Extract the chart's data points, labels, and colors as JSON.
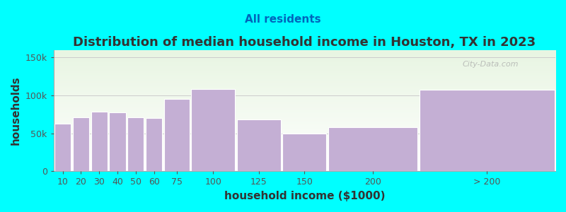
{
  "title": "Distribution of median household income in Houston, TX in 2023",
  "subtitle": "All residents",
  "xlabel": "household income ($1000)",
  "ylabel": "households",
  "background_color": "#00FFFF",
  "plot_bg_top": "#e8f5e2",
  "plot_bg_bottom": "#ffffff",
  "bar_color": "#c4afd4",
  "bar_edge_color": "#ffffff",
  "categories": [
    "10",
    "20",
    "30",
    "40",
    "50",
    "60",
    "75",
    "100",
    "125",
    "150",
    "200",
    "> 200"
  ],
  "left_edges": [
    0,
    10,
    20,
    30,
    40,
    50,
    60,
    75,
    100,
    125,
    150,
    200
  ],
  "widths": [
    10,
    10,
    10,
    10,
    10,
    10,
    15,
    25,
    25,
    25,
    50,
    75
  ],
  "values": [
    63000,
    71000,
    79000,
    78000,
    71000,
    70000,
    95000,
    108000,
    68000,
    50000,
    58000,
    107000
  ],
  "tick_positions": [
    5,
    15,
    25,
    35,
    45,
    55,
    67.5,
    87.5,
    112.5,
    137.5,
    175,
    237.5
  ],
  "tick_labels": [
    "10",
    "20",
    "30",
    "40",
    "50",
    "60",
    "75",
    "100",
    "125",
    "150",
    "200",
    "> 200"
  ],
  "xlim": [
    0,
    275
  ],
  "ylim": [
    0,
    160000
  ],
  "yticks": [
    0,
    50000,
    100000,
    150000
  ],
  "yticklabels": [
    "0",
    "50k",
    "100k",
    "150k"
  ],
  "title_fontsize": 13,
  "subtitle_fontsize": 11,
  "axis_label_fontsize": 11,
  "watermark": "City-Data.com",
  "title_color": "#333333",
  "subtitle_color": "#0066bb",
  "axis_label_color": "#333333",
  "tick_color": "#555555",
  "grid_color": "#cccccc"
}
